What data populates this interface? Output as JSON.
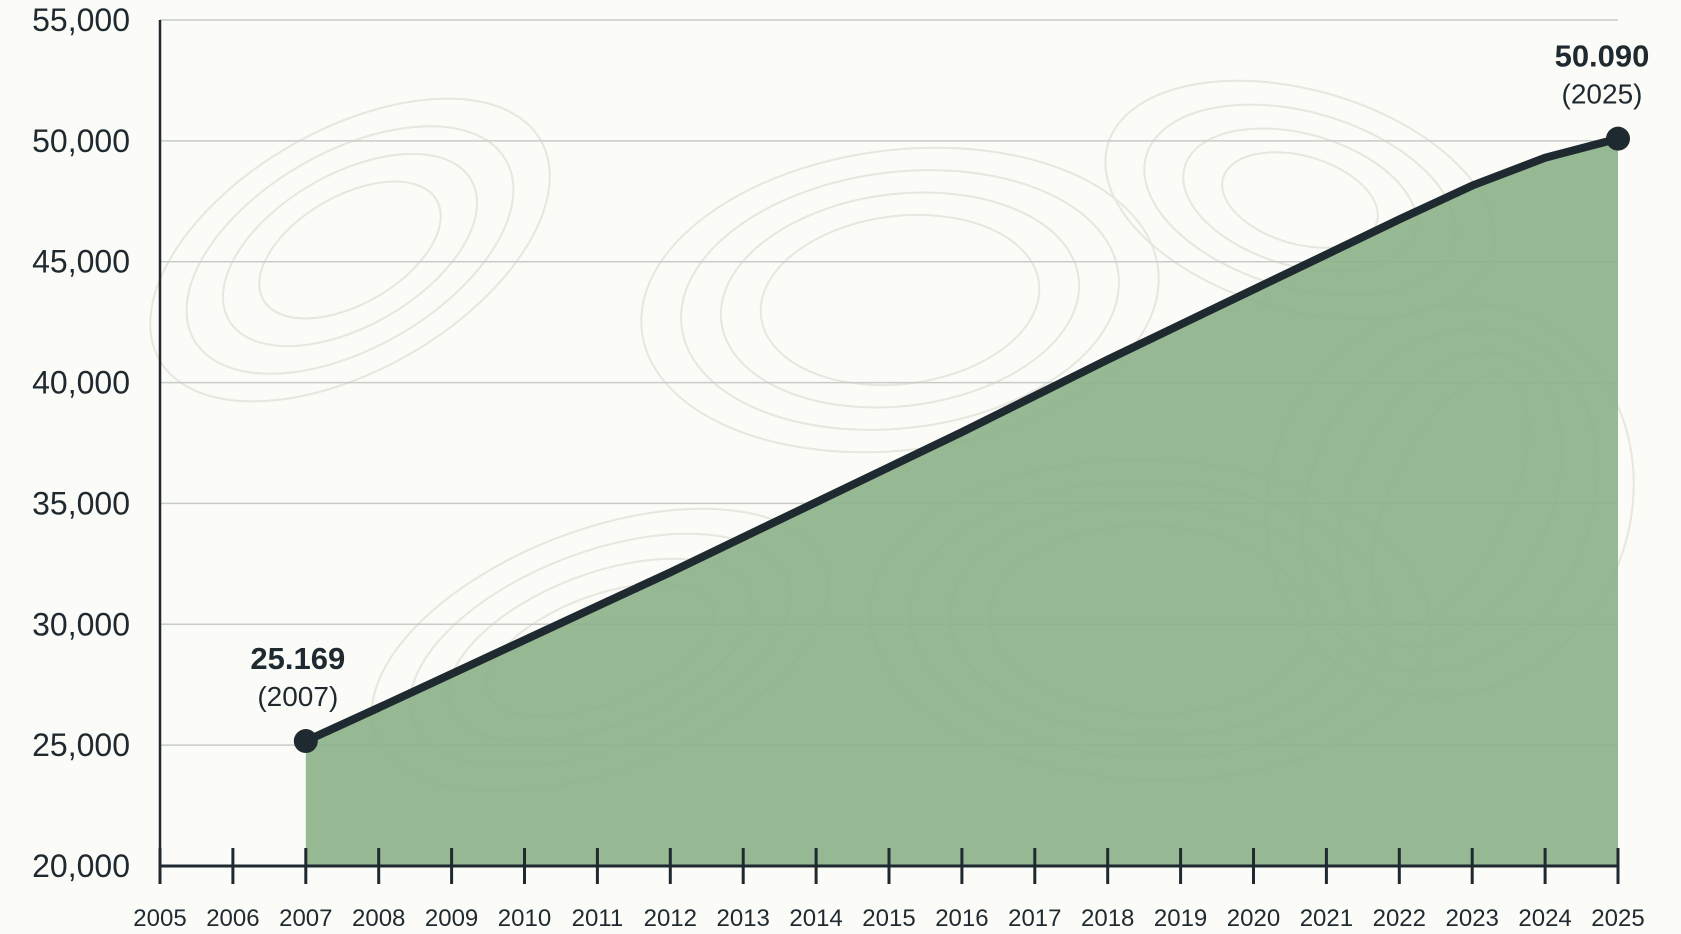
{
  "colors": {
    "fill": "#8db28a",
    "line": "#1f2a30",
    "grid": "#c7ccc8",
    "axis": "#1f2a30",
    "background": "#fbfbf8",
    "contour": "#e6e7df"
  },
  "chart_data": {
    "type": "area",
    "title": "",
    "xlabel": "",
    "ylabel": "",
    "x": [
      2007,
      2008,
      2009,
      2010,
      2011,
      2012,
      2013,
      2014,
      2015,
      2016,
      2017,
      2018,
      2019,
      2020,
      2021,
      2022,
      2023,
      2024,
      2025
    ],
    "series": [
      {
        "values": [
          25169,
          26550,
          27950,
          29350,
          30750,
          32150,
          33600,
          35050,
          36500,
          37950,
          39450,
          40950,
          42400,
          43850,
          45300,
          46750,
          48150,
          49300,
          50090
        ]
      }
    ],
    "xlim": [
      2005,
      2025
    ],
    "ylim": [
      20000,
      55000
    ],
    "x_ticks": [
      "2005",
      "2006",
      "2007",
      "2008",
      "2009",
      "2010",
      "2011",
      "2012",
      "2013",
      "2014",
      "2015",
      "2016",
      "2017",
      "2018",
      "2019",
      "2020",
      "2021",
      "2022",
      "2023",
      "2024",
      "2025"
    ],
    "y_ticks": [
      "20,000",
      "25,000",
      "30,000",
      "35,000",
      "40,000",
      "45,000",
      "50,000",
      "55,000"
    ],
    "grid": true,
    "legend": "none",
    "annotations": [
      {
        "x": 2007,
        "y": 25169,
        "value": "25.169",
        "year": "(2007)"
      },
      {
        "x": 2025,
        "y": 50090,
        "value": "50.090",
        "year": "(2025)"
      }
    ]
  }
}
